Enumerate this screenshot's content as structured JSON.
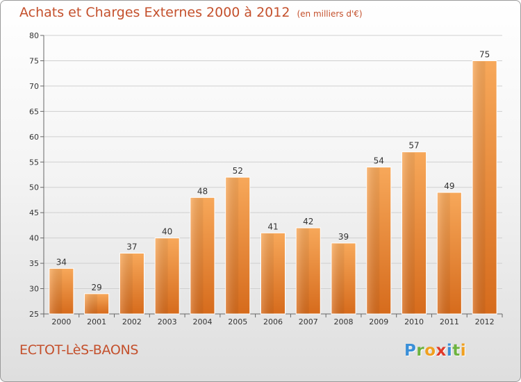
{
  "header": {
    "title": "Achats et Charges Externes 2000 à 2012",
    "subtitle": "(en milliers d'€)"
  },
  "footer": {
    "commune": "ECTOT-LèS-BAONS",
    "logo_letters": [
      {
        "char": "P",
        "color": "#3a8fd8"
      },
      {
        "char": "r",
        "color": "#6db33f"
      },
      {
        "char": "o",
        "color": "#f0a020"
      },
      {
        "char": "x",
        "color": "#e03a2a"
      },
      {
        "char": "i",
        "color": "#3a8fd8"
      },
      {
        "char": "t",
        "color": "#6db33f"
      },
      {
        "char": "i",
        "color": "#f0a020"
      }
    ]
  },
  "colors": {
    "accent": "#c4502c",
    "bar_light": "#f7a85a",
    "bar_dark": "#d66b1c"
  },
  "chart_data": {
    "type": "bar",
    "categories": [
      "2000",
      "2001",
      "2002",
      "2003",
      "2004",
      "2005",
      "2006",
      "2007",
      "2008",
      "2009",
      "2010",
      "2011",
      "2012"
    ],
    "values": [
      34,
      29,
      37,
      40,
      48,
      52,
      41,
      42,
      39,
      54,
      57,
      49,
      75
    ],
    "title": "Achats et Charges Externes 2000 à 2012",
    "ylim": [
      25,
      80
    ],
    "yticks": [
      25,
      30,
      35,
      40,
      45,
      50,
      55,
      60,
      65,
      70,
      75,
      80
    ],
    "grid": true
  }
}
